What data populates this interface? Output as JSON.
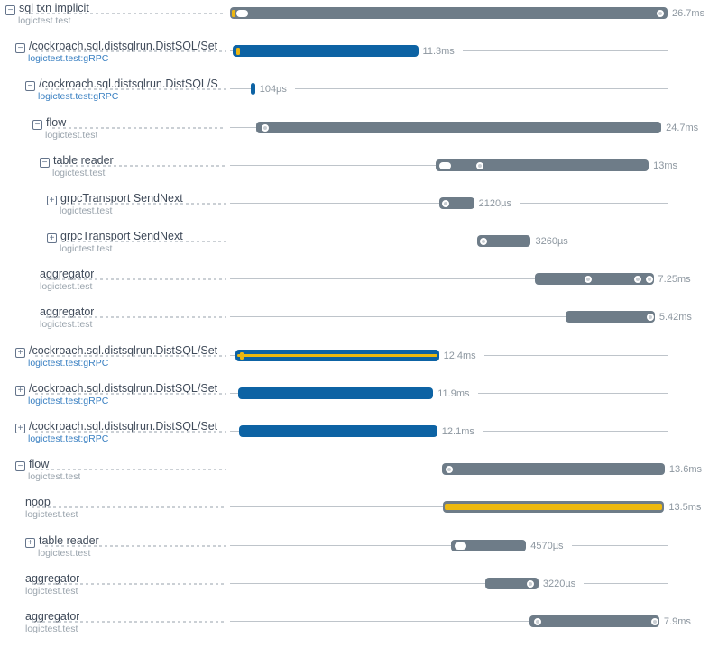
{
  "chart_data": {
    "type": "bar",
    "variant": "trace-waterfall-gantt",
    "title": "",
    "xlabel": "",
    "ylabel": "",
    "total_ms": 26.7,
    "time_range_ms": [
      0,
      26.7
    ],
    "grid": false,
    "legend": false,
    "spans": [
      {
        "title": "sql txn implicit",
        "subtitle": "logictest.test",
        "subtitle_type": "plain",
        "depth": 0,
        "expander": "collapse",
        "start_ms": 0,
        "duration_ms": 26.7,
        "duration_label": "26.7ms",
        "color": "gray",
        "stripe": null,
        "markers": [
          {
            "type": "tick",
            "frac": 0.004
          },
          {
            "type": "pill",
            "frac": 0.015
          },
          {
            "type": "ring",
            "frac": 0.975
          }
        ]
      },
      {
        "title": "/cockroach.sql.distsqlrun.DistSQL/Set",
        "subtitle": "logictest.test:gRPC",
        "subtitle_type": "grpc",
        "depth": 1,
        "expander": "collapse",
        "start_ms": 0.18,
        "duration_ms": 11.3,
        "duration_label": "11.3ms",
        "color": "blue",
        "stripe": null,
        "markers": [
          {
            "type": "tick",
            "frac": 0.02
          }
        ]
      },
      {
        "title": "/cockroach.sql.distsqlrun.DistSQL/S",
        "subtitle": "logictest.test:gRPC",
        "subtitle_type": "grpc",
        "depth": 2,
        "expander": "collapse",
        "start_ms": 1.25,
        "duration_ms": 0.104,
        "duration_label": "104µs",
        "color": "blue",
        "stripe": null,
        "markers": []
      },
      {
        "title": "flow",
        "subtitle": "logictest.test",
        "subtitle_type": "plain",
        "depth": 3,
        "expander": "collapse",
        "start_ms": 1.62,
        "duration_ms": 24.7,
        "duration_label": "24.7ms",
        "color": "gray",
        "stripe": null,
        "markers": [
          {
            "type": "ring",
            "frac": 0.012
          }
        ]
      },
      {
        "title": "table reader",
        "subtitle": "logictest.test",
        "subtitle_type": "plain",
        "depth": 4,
        "expander": "collapse",
        "start_ms": 12.55,
        "duration_ms": 13,
        "duration_label": "13ms",
        "color": "gray",
        "stripe": null,
        "markers": [
          {
            "type": "pill",
            "frac": 0.018
          },
          {
            "type": "ring",
            "frac": 0.19
          }
        ]
      },
      {
        "title": "grpcTransport SendNext",
        "subtitle": "logictest.test",
        "subtitle_type": "plain",
        "depth": 5,
        "expander": "expand",
        "start_ms": 12.78,
        "duration_ms": 2.12,
        "duration_label": "2120µs",
        "color": "gray",
        "stripe": null,
        "markers": [
          {
            "type": "ring",
            "frac": 0.07
          }
        ]
      },
      {
        "title": "grpcTransport SendNext",
        "subtitle": "logictest.test",
        "subtitle_type": "plain",
        "depth": 5,
        "expander": "expand",
        "start_ms": 15.1,
        "duration_ms": 3.26,
        "duration_label": "3260µs",
        "color": "gray",
        "stripe": null,
        "markers": [
          {
            "type": "ring",
            "frac": 0.05
          }
        ]
      },
      {
        "title": "aggregator",
        "subtitle": "logictest.test",
        "subtitle_type": "plain",
        "depth": 4,
        "expander": null,
        "start_ms": 18.6,
        "duration_ms": 7.25,
        "duration_label": "7.25ms",
        "color": "gray",
        "stripe": null,
        "markers": [
          {
            "type": "ring",
            "frac": 0.42
          },
          {
            "type": "ring",
            "frac": 0.84
          },
          {
            "type": "ring",
            "frac": 0.94
          }
        ]
      },
      {
        "title": "aggregator",
        "subtitle": "logictest.test",
        "subtitle_type": "plain",
        "depth": 4,
        "expander": null,
        "start_ms": 20.5,
        "duration_ms": 5.42,
        "duration_label": "5.42ms",
        "color": "gray",
        "stripe": null,
        "markers": [
          {
            "type": "ring",
            "frac": 0.96
          }
        ]
      },
      {
        "title": "/cockroach.sql.distsqlrun.DistSQL/Set",
        "subtitle": "logictest.test:gRPC",
        "subtitle_type": "grpc",
        "depth": 1,
        "expander": "expand",
        "start_ms": 0.35,
        "duration_ms": 12.4,
        "duration_label": "12.4ms",
        "color": "blue",
        "stripe": "thin",
        "markers": [
          {
            "type": "tick",
            "frac": 0.02
          }
        ]
      },
      {
        "title": "/cockroach.sql.distsqlrun.DistSQL/Set",
        "subtitle": "logictest.test:gRPC",
        "subtitle_type": "grpc",
        "depth": 1,
        "expander": "expand",
        "start_ms": 0.5,
        "duration_ms": 11.9,
        "duration_label": "11.9ms",
        "color": "blue",
        "stripe": null,
        "markers": []
      },
      {
        "title": "/cockroach.sql.distsqlrun.DistSQL/Set",
        "subtitle": "logictest.test:gRPC",
        "subtitle_type": "grpc",
        "depth": 1,
        "expander": "expand",
        "start_ms": 0.55,
        "duration_ms": 12.1,
        "duration_label": "12.1ms",
        "color": "blue",
        "stripe": null,
        "markers": []
      },
      {
        "title": "flow",
        "subtitle": "logictest.test",
        "subtitle_type": "plain",
        "depth": 1,
        "expander": "collapse",
        "start_ms": 12.93,
        "duration_ms": 13.6,
        "duration_label": "13.6ms",
        "color": "gray",
        "stripe": null,
        "markers": [
          {
            "type": "ring",
            "frac": 0.015
          }
        ]
      },
      {
        "title": "noop",
        "subtitle": "logictest.test",
        "subtitle_type": "plain",
        "depth": 2,
        "expander": null,
        "start_ms": 13.0,
        "duration_ms": 13.5,
        "duration_label": "13.5ms",
        "color": "gray",
        "stripe": "thick",
        "markers": []
      },
      {
        "title": "table reader",
        "subtitle": "logictest.test",
        "subtitle_type": "plain",
        "depth": 2,
        "expander": "expand",
        "start_ms": 13.5,
        "duration_ms": 4.57,
        "duration_label": "4570µs",
        "color": "gray",
        "stripe": null,
        "markers": [
          {
            "type": "pill",
            "frac": 0.05
          }
        ]
      },
      {
        "title": "aggregator",
        "subtitle": "logictest.test",
        "subtitle_type": "plain",
        "depth": 2,
        "expander": null,
        "start_ms": 15.6,
        "duration_ms": 3.22,
        "duration_label": "3220µs",
        "color": "gray",
        "stripe": null,
        "markers": [
          {
            "type": "ring",
            "frac": 0.78
          }
        ]
      },
      {
        "title": "aggregator",
        "subtitle": "logictest.test",
        "subtitle_type": "plain",
        "depth": 2,
        "expander": null,
        "start_ms": 18.3,
        "duration_ms": 7.9,
        "duration_label": "7.9ms",
        "color": "gray",
        "stripe": null,
        "markers": [
          {
            "type": "ring",
            "frac": 0.03
          },
          {
            "type": "ring",
            "frac": 0.95
          }
        ]
      }
    ],
    "expander_symbols": {
      "collapse": "−",
      "expand": "+"
    }
  },
  "colors": {
    "bar_gray": "#6e7c88",
    "bar_blue": "#0d63a4",
    "stripe_yellow": "#edb90f",
    "tick_yellow": "#ecb611",
    "title_text": "#404b5a",
    "subtitle_gray": "#9aa4ad",
    "subtitle_grpc_blue": "#3a80c2",
    "duration_text": "#8d97a0",
    "leader_dash": "#cbd0d5",
    "timeline_line": "#bec4ca",
    "expander": "#64748b",
    "marker_fill": "#c9ced3",
    "marker_ring": "#ffffff",
    "background": "#ffffff"
  }
}
